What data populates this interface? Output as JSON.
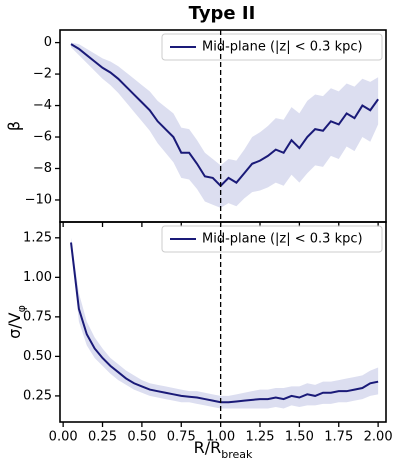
{
  "title": "Type II",
  "chart_data": [
    {
      "type": "line",
      "ylabel": "β",
      "xlim": [
        -0.02,
        2.05
      ],
      "ylim": [
        -11.4,
        0.8
      ],
      "yticks": [
        {
          "value": 0,
          "label": "0"
        },
        {
          "value": -2,
          "label": "−2"
        },
        {
          "value": -4,
          "label": "−4"
        },
        {
          "value": -6,
          "label": "−6"
        },
        {
          "value": -8,
          "label": "−8"
        },
        {
          "value": -10,
          "label": "−10"
        }
      ],
      "vline": 1.0,
      "legend": "upper right",
      "x": [
        0.05,
        0.1,
        0.15,
        0.2,
        0.25,
        0.3,
        0.35,
        0.4,
        0.45,
        0.5,
        0.55,
        0.6,
        0.65,
        0.7,
        0.75,
        0.8,
        0.85,
        0.9,
        0.95,
        1.0,
        1.05,
        1.1,
        1.15,
        1.2,
        1.25,
        1.3,
        1.35,
        1.4,
        1.45,
        1.5,
        1.55,
        1.6,
        1.65,
        1.7,
        1.75,
        1.8,
        1.85,
        1.9,
        1.95,
        2.0
      ],
      "series": [
        {
          "name": "Mid-plane (|z| < 0.3 kpc)",
          "color": "#1a1a78",
          "band_color": "#dcdef0",
          "values": [
            -0.1,
            -0.4,
            -0.8,
            -1.2,
            -1.6,
            -1.9,
            -2.3,
            -2.8,
            -3.3,
            -3.8,
            -4.3,
            -5.0,
            -5.5,
            -6.0,
            -7.0,
            -7.0,
            -7.7,
            -8.5,
            -8.6,
            -9.1,
            -8.6,
            -8.9,
            -8.3,
            -7.7,
            -7.5,
            -7.2,
            -6.8,
            -7.0,
            -6.2,
            -6.7,
            -6.0,
            -5.5,
            -5.6,
            -5.0,
            -5.2,
            -4.5,
            -4.8,
            -4.0,
            -4.3,
            -3.6
          ],
          "upper": [
            0,
            -0.1,
            -0.4,
            -0.7,
            -1.0,
            -1.2,
            -1.5,
            -1.9,
            -2.3,
            -2.7,
            -3.1,
            -3.7,
            -4.1,
            -4.5,
            -5.4,
            -5.5,
            -6.2,
            -7.0,
            -7.4,
            -7.8,
            -7.4,
            -7.5,
            -6.8,
            -6.0,
            -5.7,
            -5.3,
            -4.8,
            -4.9,
            -4.1,
            -4.5,
            -3.7,
            -3.3,
            -3.4,
            -2.9,
            -3.1,
            -2.6,
            -2.8,
            -2.3,
            -2.5,
            -2.2
          ],
          "lower": [
            -0.3,
            -0.8,
            -1.3,
            -1.8,
            -2.3,
            -2.7,
            -3.2,
            -3.8,
            -4.4,
            -5.0,
            -5.6,
            -6.4,
            -7.0,
            -7.6,
            -8.6,
            -8.7,
            -9.3,
            -10.1,
            -10.3,
            -10.5,
            -10.2,
            -10.4,
            -9.9,
            -9.5,
            -9.4,
            -9.2,
            -8.9,
            -9.1,
            -8.4,
            -8.9,
            -8.3,
            -7.8,
            -7.9,
            -7.2,
            -7.4,
            -6.6,
            -6.9,
            -6.0,
            -6.3,
            -5.2
          ]
        }
      ]
    },
    {
      "type": "line",
      "ylabel": {
        "main": "σ/V",
        "sub": "φ"
      },
      "xlabel": {
        "main": "R/R",
        "sub": "break"
      },
      "xlim": [
        -0.02,
        2.05
      ],
      "ylim": [
        0.085,
        1.35
      ],
      "xticks": [
        {
          "value": 0,
          "label": "0.00"
        },
        0.25,
        {
          "value": 0.5,
          "label": "0.50"
        },
        0.75,
        {
          "value": 1,
          "label": "1.00"
        },
        1.25,
        {
          "value": 1.5,
          "label": "1.50"
        },
        1.75,
        {
          "value": 2,
          "label": "2.00"
        }
      ],
      "yticks": [
        0.25,
        {
          "value": 0.5,
          "label": "0.50"
        },
        0.75,
        {
          "value": 1,
          "label": "1.00"
        },
        1.25
      ],
      "vline": 1.0,
      "legend": "upper right",
      "x": [
        0.05,
        0.1,
        0.15,
        0.2,
        0.25,
        0.3,
        0.35,
        0.4,
        0.45,
        0.5,
        0.55,
        0.6,
        0.65,
        0.7,
        0.75,
        0.8,
        0.85,
        0.9,
        0.95,
        1.0,
        1.05,
        1.1,
        1.15,
        1.2,
        1.25,
        1.3,
        1.35,
        1.4,
        1.45,
        1.5,
        1.55,
        1.6,
        1.65,
        1.7,
        1.75,
        1.8,
        1.85,
        1.9,
        1.95,
        2.0
      ],
      "series": [
        {
          "name": "Mid-plane (|z| < 0.3 kpc)",
          "color": "#1a1a78",
          "band_color": "#dcdef0",
          "values": [
            1.22,
            0.8,
            0.64,
            0.55,
            0.49,
            0.44,
            0.4,
            0.36,
            0.33,
            0.31,
            0.29,
            0.28,
            0.27,
            0.26,
            0.25,
            0.245,
            0.24,
            0.23,
            0.22,
            0.21,
            0.21,
            0.215,
            0.22,
            0.225,
            0.23,
            0.23,
            0.24,
            0.23,
            0.25,
            0.24,
            0.26,
            0.25,
            0.27,
            0.27,
            0.28,
            0.28,
            0.29,
            0.3,
            0.33,
            0.34
          ],
          "upper": [
            1.25,
            0.9,
            0.72,
            0.62,
            0.55,
            0.49,
            0.45,
            0.41,
            0.38,
            0.35,
            0.33,
            0.32,
            0.31,
            0.3,
            0.29,
            0.28,
            0.28,
            0.27,
            0.26,
            0.25,
            0.25,
            0.26,
            0.27,
            0.28,
            0.29,
            0.29,
            0.3,
            0.3,
            0.31,
            0.31,
            0.33,
            0.32,
            0.34,
            0.34,
            0.35,
            0.36,
            0.37,
            0.38,
            0.41,
            0.43
          ],
          "lower": [
            1.19,
            0.72,
            0.57,
            0.49,
            0.44,
            0.39,
            0.35,
            0.32,
            0.29,
            0.27,
            0.25,
            0.24,
            0.23,
            0.22,
            0.21,
            0.21,
            0.2,
            0.19,
            0.18,
            0.17,
            0.17,
            0.17,
            0.17,
            0.17,
            0.17,
            0.17,
            0.18,
            0.17,
            0.19,
            0.18,
            0.19,
            0.19,
            0.2,
            0.2,
            0.21,
            0.21,
            0.22,
            0.23,
            0.25,
            0.26
          ]
        }
      ]
    }
  ]
}
